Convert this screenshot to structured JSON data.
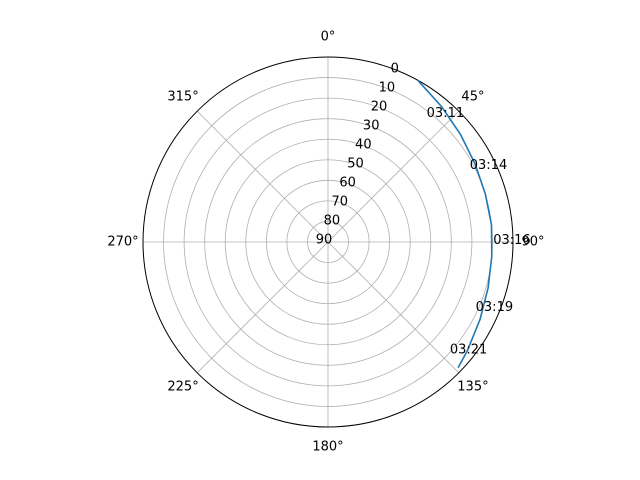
{
  "chart_data": {
    "type": "line",
    "projection": "polar",
    "theta_zero_location": "N",
    "theta_direction": "clockwise",
    "theta_ticks": [
      "0°",
      "45°",
      "90°",
      "135°",
      "180°",
      "225°",
      "270°",
      "315°"
    ],
    "radial_axis": "inverted (90 at center, 0 at edge)",
    "r_ticks": [
      "0",
      "10",
      "20",
      "30",
      "40",
      "50",
      "60",
      "70",
      "80",
      "90"
    ],
    "rlim": [
      90,
      0
    ],
    "grid": true,
    "series": [
      {
        "color": "#1f77b4",
        "theta_deg": [
          29,
          40,
          51,
          62,
          73,
          84,
          95,
          106,
          117,
          128,
          134
        ],
        "r": [
          0,
          4,
          7,
          9,
          10,
          10,
          10,
          9,
          7,
          4,
          2
        ]
      }
    ],
    "annotations": [
      {
        "text": "03:11",
        "theta_deg": 42.4,
        "r": 5.3
      },
      {
        "text": "03:14",
        "theta_deg": 64.5,
        "r": 3.5
      },
      {
        "text": "03:16",
        "theta_deg": 89.5,
        "r": 0.5
      },
      {
        "text": "03:19",
        "theta_deg": 111.5,
        "r": 3.0
      },
      {
        "text": "03:21",
        "theta_deg": 127.5,
        "r": 3.8
      }
    ]
  }
}
